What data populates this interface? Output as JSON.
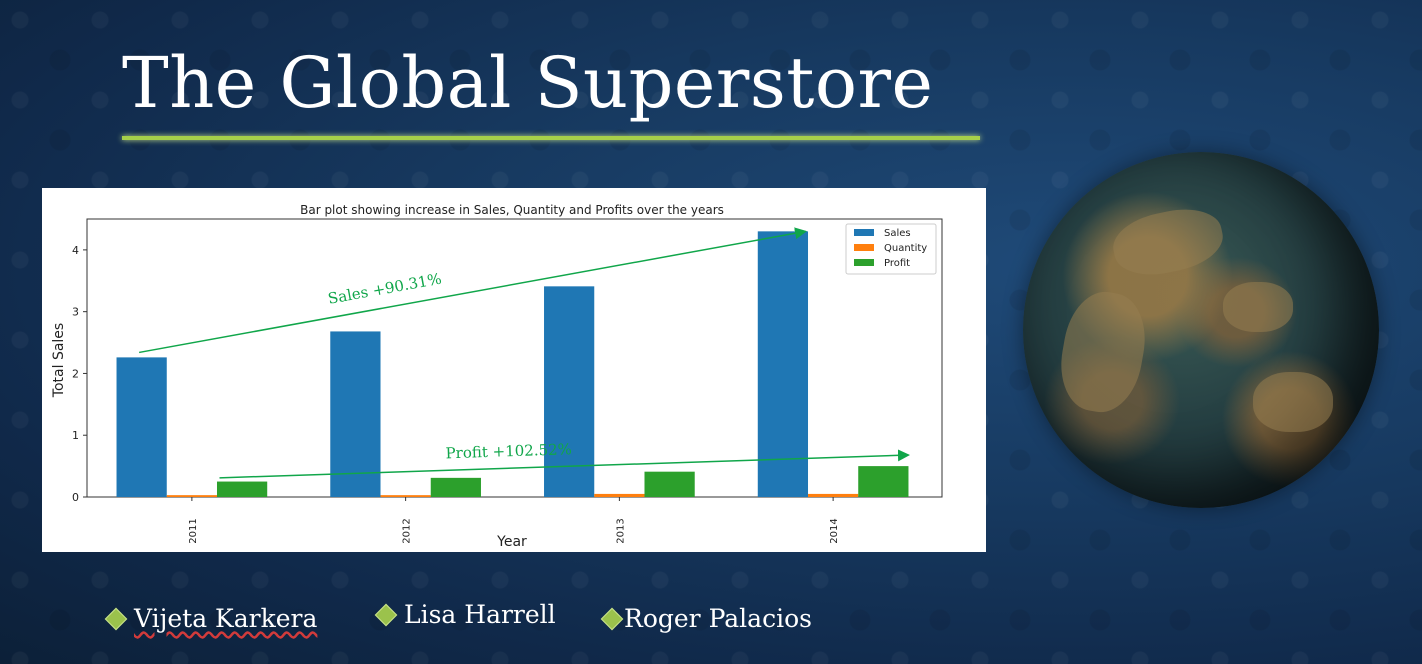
{
  "slide": {
    "title": "The Global Superstore",
    "accent_color": "#a6d04a",
    "authors": [
      "Vijeta Karkera",
      "Lisa Harrell",
      "Roger Palacios"
    ]
  },
  "globe": {
    "icon": "earth-globe-icon"
  },
  "chart_data": {
    "type": "bar",
    "title": "Bar plot showing increase in Sales, Quantity and Profits over the years",
    "xlabel": "Year",
    "ylabel": "Total Sales",
    "categories": [
      "2011",
      "2012",
      "2013",
      "2014"
    ],
    "yticks": [
      "0",
      "1",
      "2",
      "3",
      "4"
    ],
    "ylim": [
      0,
      4.5
    ],
    "legend_position": "top-right",
    "grid": false,
    "series": [
      {
        "name": "Sales",
        "color": "#1f77b4",
        "values": [
          2.26,
          2.68,
          3.41,
          4.3
        ]
      },
      {
        "name": "Quantity",
        "color": "#ff7f0e",
        "values": [
          0.03,
          0.03,
          0.05,
          0.05
        ]
      },
      {
        "name": "Profit",
        "color": "#2ca02c",
        "values": [
          0.25,
          0.31,
          0.41,
          0.5
        ]
      }
    ],
    "annotations": [
      {
        "text": "Sales +90.31%",
        "color": "#10a64a",
        "from": [
          "2011",
          2.34
        ],
        "to": [
          "2014",
          4.3
        ]
      },
      {
        "text": "Profit +102.52%",
        "color": "#10a64a",
        "from": [
          "2011",
          0.31
        ],
        "to": [
          "2014",
          0.68
        ]
      }
    ]
  }
}
